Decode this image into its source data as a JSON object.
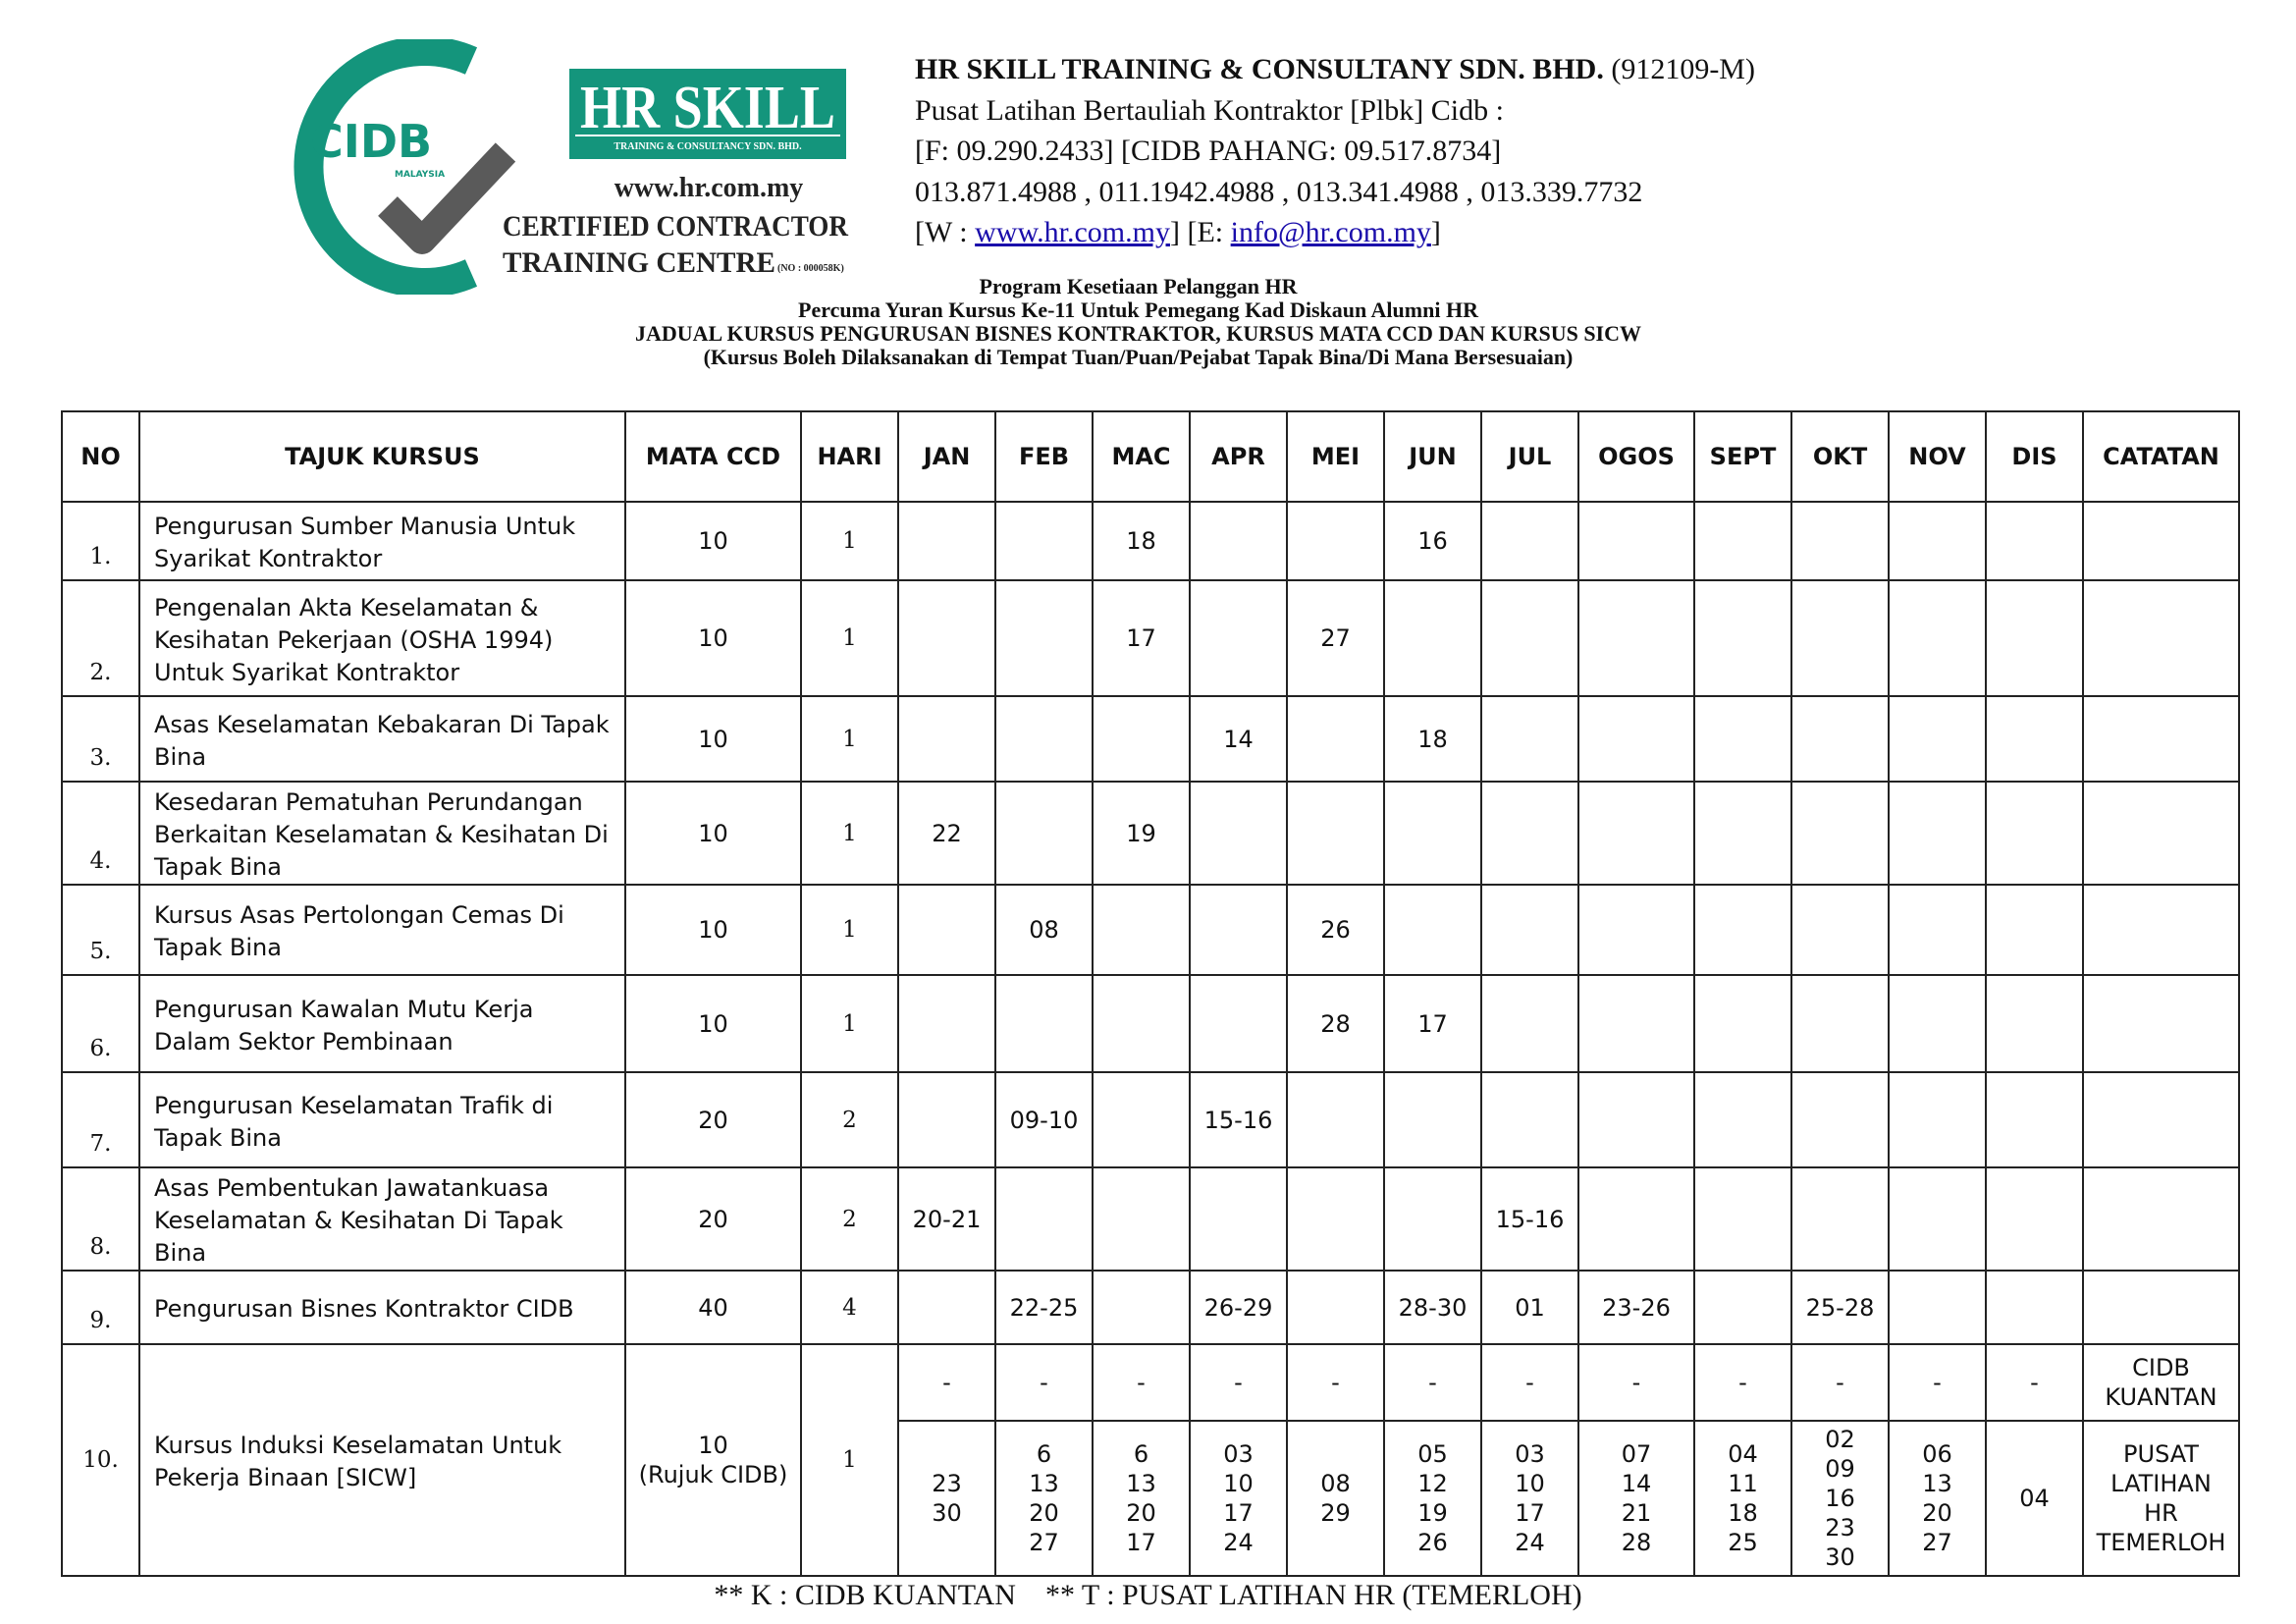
{
  "logo": {
    "cidb_text": "CIDB",
    "cidb_sub": "MALAYSIA",
    "brand": "HR SKILL",
    "brand_sub": "TRAINING & CONSULTANCY SDN. BHD.",
    "website": "www.hr.com.my",
    "cert_line1": "CERTIFIED CONTRACTOR",
    "cert_line2": "TRAINING CENTRE",
    "cert_no": "(NO : 000058K)",
    "colors": {
      "green": "#14957c",
      "grey": "#5a5a5a"
    }
  },
  "header": {
    "company": "HR SKILL TRAINING & CONSULTANY SDN. BHD.",
    "reg_no": "(912109-M)",
    "line2": "Pusat Latihan Bertauliah Kontraktor [Plbk] Cidb :",
    "line3": "[F: 09.290.2433] [CIDB PAHANG: 09.517.8734]",
    "line4": "013.871.4988 , 011.1942.4988 , 013.341.4988 , 013.339.7732",
    "web_prefix": "[W : ",
    "web": "www.hr.com.my",
    "email_prefix": "] [E: ",
    "email": "info@hr.com.my",
    "suffix": "]"
  },
  "titles": [
    "Program Kesetiaan Pelanggan HR",
    "Percuma Yuran Kursus Ke-11 Untuk Pemegang Kad Diskaun Alumni HR",
    "JADUAL KURSUS PENGURUSAN BISNES KONTRAKTOR, KURSUS MATA CCD DAN KURSUS SICW",
    "(Kursus Boleh Dilaksanakan di Tempat Tuan/Puan/Pejabat Tapak Bina/Di Mana Bersesuaian)"
  ],
  "table": {
    "columns": [
      "NO",
      "TAJUK KURSUS",
      "MATA CCD",
      "HARI",
      "JAN",
      "FEB",
      "MAC",
      "APR",
      "MEI",
      "JUN",
      "JUL",
      "OGOS",
      "SEPT",
      "OKT",
      "NOV",
      "DIS",
      "CATATAN"
    ],
    "rows": [
      {
        "no": "1.",
        "title": "Pengurusan Sumber Manusia Untuk Syarikat Kontraktor",
        "ccd": "10",
        "hari": "1",
        "months": [
          "",
          "",
          "18",
          "",
          "",
          "16",
          "",
          "",
          "",
          "",
          "",
          ""
        ],
        "note": ""
      },
      {
        "no": "2.",
        "title": "Pengenalan Akta Keselamatan & Kesihatan Pekerjaan (OSHA 1994) Untuk Syarikat Kontraktor",
        "ccd": "10",
        "hari": "1",
        "months": [
          "",
          "",
          "17",
          "",
          "27",
          "",
          "",
          "",
          "",
          "",
          "",
          ""
        ],
        "note": ""
      },
      {
        "no": "3.",
        "title": "Asas Keselamatan Kebakaran Di Tapak Bina",
        "ccd": "10",
        "hari": "1",
        "months": [
          "",
          "",
          "",
          "14",
          "",
          "18",
          "",
          "",
          "",
          "",
          "",
          ""
        ],
        "note": ""
      },
      {
        "no": "4.",
        "title": "Kesedaran Pematuhan Perundangan Berkaitan Keselamatan & Kesihatan Di Tapak Bina",
        "ccd": "10",
        "hari": "1",
        "months": [
          "22",
          "",
          "19",
          "",
          "",
          "",
          "",
          "",
          "",
          "",
          "",
          ""
        ],
        "note": ""
      },
      {
        "no": "5.",
        "title": "Kursus Asas Pertolongan Cemas Di Tapak Bina",
        "ccd": "10",
        "hari": "1",
        "months": [
          "",
          "08",
          "",
          "",
          "26",
          "",
          "",
          "",
          "",
          "",
          "",
          ""
        ],
        "note": ""
      },
      {
        "no": "6.",
        "title": "Pengurusan Kawalan Mutu Kerja Dalam Sektor Pembinaan",
        "ccd": "10",
        "hari": "1",
        "months": [
          "",
          "",
          "",
          "",
          "28",
          "17",
          "",
          "",
          "",
          "",
          "",
          ""
        ],
        "note": ""
      },
      {
        "no": "7.",
        "title": "Pengurusan Keselamatan Trafik di Tapak Bina",
        "ccd": "20",
        "hari": "2",
        "months": [
          "",
          "09-10",
          "",
          "15-16",
          "",
          "",
          "",
          "",
          "",
          "",
          "",
          ""
        ],
        "note": ""
      },
      {
        "no": "8.",
        "title": "Asas Pembentukan Jawatankuasa Keselamatan & Kesihatan Di Tapak Bina",
        "ccd": "20",
        "hari": "2",
        "months": [
          "20-21",
          "",
          "",
          "",
          "",
          "",
          "15-16",
          "",
          "",
          "",
          "",
          ""
        ],
        "note": ""
      },
      {
        "no": "9.",
        "title": "Pengurusan Bisnes Kontraktor CIDB",
        "ccd": "40",
        "hari": "4",
        "months": [
          "",
          "22-25",
          "",
          "26-29",
          "",
          "28-30",
          "01",
          "23-26",
          "",
          "25-28",
          "",
          ""
        ],
        "note": ""
      }
    ],
    "sicw": {
      "no": "10.",
      "title": "Kursus Induksi Keselamatan Untuk Pekerja Binaan [SICW]",
      "ccd": "10\n(Rujuk CIDB)",
      "hari": "1",
      "kuantan": {
        "months": [
          "-",
          "-",
          "-",
          "-",
          "-",
          "-",
          "-",
          "-",
          "-",
          "-",
          "-",
          "-"
        ],
        "note": "CIDB\nKUANTAN"
      },
      "temerloh": {
        "months": [
          "23\n30",
          "6\n13\n20\n27",
          "6\n13\n20\n17",
          "03\n10\n17\n24",
          "08\n29",
          "05\n12\n19\n26",
          "03\n10\n17\n24",
          "07\n14\n21\n28",
          "04\n11\n18\n25",
          "02\n09\n16\n23\n30",
          "06\n13\n20\n27",
          "04"
        ],
        "note": "PUSAT\nLATIHAN\nHR\nTEMERLOH"
      }
    }
  },
  "footer": "** K : CIDB KUANTAN    ** T : PUSAT LATIHAN HR (TEMERLOH)"
}
